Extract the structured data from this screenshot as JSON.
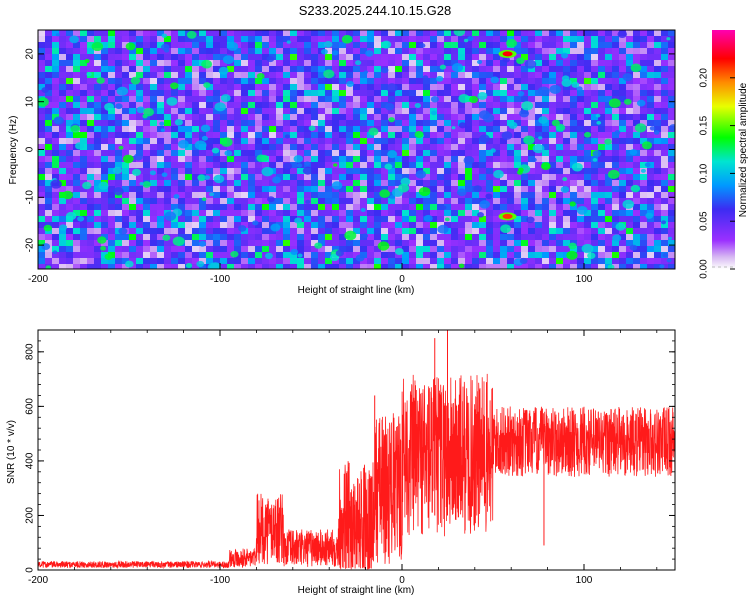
{
  "title": "S233.2025.244.10.15.G28",
  "chart_data": [
    {
      "type": "heatmap",
      "xlabel": "Height of straight line (km)",
      "ylabel": "Frequency (Hz)",
      "xlim": [
        -200,
        150
      ],
      "ylim": [
        -25,
        25
      ],
      "xticks": [
        "-200",
        "-100",
        "0",
        "100"
      ],
      "yticks": [
        "20",
        "10",
        "0",
        "-10",
        "-20"
      ],
      "colorbar": {
        "label": "Normalized spectral amplitude",
        "range": [
          0,
          0.25
        ],
        "ticks": [
          "0.00",
          "0.05",
          "0.10",
          "0.15",
          "0.20"
        ],
        "colors": [
          "#ffffff",
          "#d7b8f2",
          "#9b30ff",
          "#3c2cf2",
          "#0099ff",
          "#00e5d0",
          "#00ff00",
          "#e8ff00",
          "#ff8c00",
          "#ff0000",
          "#ff00b0"
        ]
      },
      "highlights": [
        {
          "height_km": 58,
          "frequency_hz": 20,
          "amplitude": 0.22
        },
        {
          "height_km": 58,
          "frequency_hz": -14,
          "amplitude": 0.21
        }
      ]
    },
    {
      "type": "line",
      "xlabel": "Height of straight line (km)",
      "ylabel": "SNR (10 * v/v)",
      "xlim": [
        -200,
        150
      ],
      "ylim": [
        0,
        880
      ],
      "xticks": [
        "-200",
        "-100",
        "0",
        "100"
      ],
      "yticks": [
        "800",
        "600",
        "400",
        "200",
        "0"
      ],
      "line_color": "#ff1a1a",
      "segments": [
        {
          "from_km": -200,
          "to_km": -95,
          "base": 20,
          "noise": 12
        },
        {
          "from_km": -95,
          "to_km": -80,
          "base": 45,
          "noise": 35
        },
        {
          "from_km": -80,
          "to_km": -65,
          "base": 150,
          "noise": 130
        },
        {
          "from_km": -65,
          "to_km": -35,
          "base": 80,
          "noise": 70
        },
        {
          "from_km": -35,
          "to_km": -15,
          "base": 180,
          "noise": 220
        },
        {
          "from_km": -15,
          "to_km": 0,
          "base": 300,
          "noise": 280
        },
        {
          "from_km": 0,
          "to_km": 50,
          "base": 420,
          "noise": 300
        },
        {
          "from_km": 50,
          "to_km": 150,
          "base": 470,
          "noise": 130
        }
      ],
      "peaks": [
        {
          "height_km": 25,
          "snr": 880
        },
        {
          "height_km": 18,
          "snr": 850
        },
        {
          "height_km": -15,
          "snr": 640
        },
        {
          "height_km": 78,
          "snr": 90
        }
      ]
    }
  ]
}
